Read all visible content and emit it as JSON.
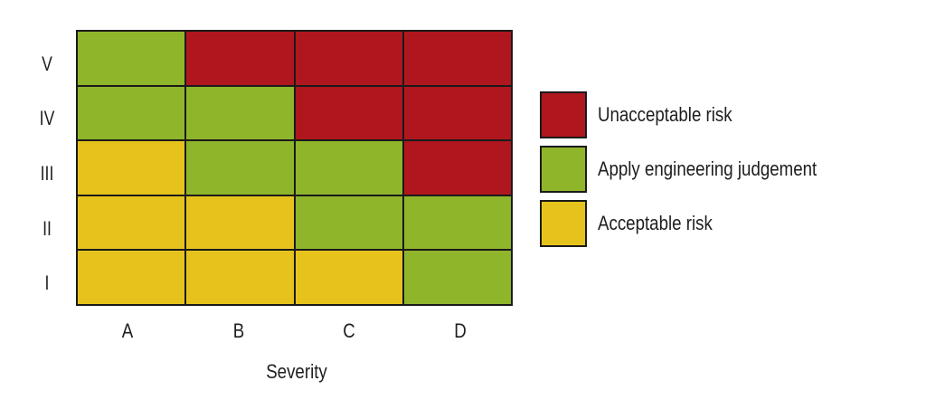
{
  "colors": {
    "unacceptable": "#b0161e",
    "judgement": "#8fb52b",
    "acceptable": "#e6c31c"
  },
  "chart_data": {
    "type": "heatmap",
    "title": "",
    "xlabel": "Severity",
    "ylabel": "",
    "x_categories": [
      "A",
      "B",
      "C",
      "D"
    ],
    "y_categories": [
      "V",
      "IV",
      "III",
      "II",
      "I"
    ],
    "values": [
      [
        "Apply engineering judgement",
        "Unacceptable risk",
        "Unacceptable risk",
        "Unacceptable risk"
      ],
      [
        "Apply engineering judgement",
        "Apply engineering judgement",
        "Unacceptable risk",
        "Unacceptable risk"
      ],
      [
        "Acceptable risk",
        "Apply engineering judgement",
        "Apply engineering judgement",
        "Unacceptable risk"
      ],
      [
        "Acceptable risk",
        "Acceptable risk",
        "Apply engineering judgement",
        "Apply engineering judgement"
      ],
      [
        "Acceptable risk",
        "Acceptable risk",
        "Acceptable risk",
        "Apply engineering judgement"
      ]
    ],
    "legend": [
      {
        "label": "Unacceptable risk",
        "color": "#b0161e"
      },
      {
        "label": "Apply engineering judgement",
        "color": "#8fb52b"
      },
      {
        "label": "Acceptable risk",
        "color": "#e6c31c"
      }
    ],
    "legend_position": "right",
    "grid": true
  },
  "axis": {
    "y_labels": [
      "V",
      "IV",
      "III",
      "II",
      "I"
    ],
    "x_labels": [
      "A",
      "B",
      "C",
      "D"
    ],
    "x_title": "Severity"
  },
  "legend": {
    "items": [
      {
        "label": "Unacceptable risk"
      },
      {
        "label": "Apply engineering judgement"
      },
      {
        "label": "Acceptable risk"
      }
    ]
  }
}
